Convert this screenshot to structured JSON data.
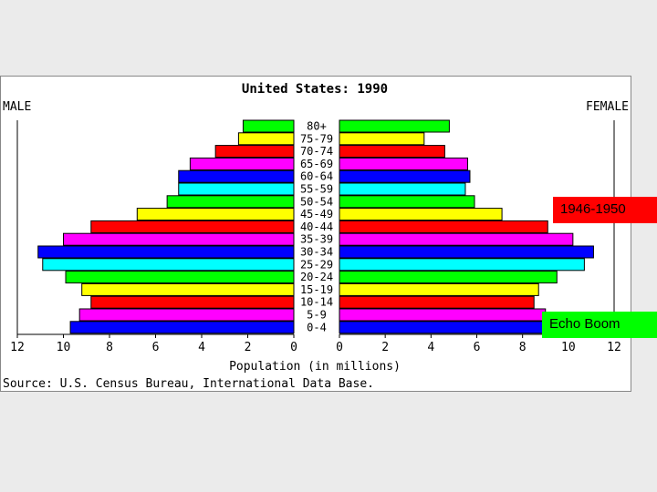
{
  "chart_data": {
    "type": "bar",
    "title": "United States: 1990",
    "left_label": "MALE",
    "right_label": "FEMALE",
    "xlabel": "Population (in millions)",
    "source": "Source: U.S. Census Bureau, International Data Base.",
    "xlim": [
      0,
      12
    ],
    "x_ticks": [
      "12",
      "10",
      "8",
      "6",
      "4",
      "2",
      "0",
      "0",
      "2",
      "4",
      "6",
      "8",
      "10",
      "12"
    ],
    "categories": [
      "80+",
      "75-79",
      "70-74",
      "65-69",
      "60-64",
      "55-59",
      "50-54",
      "45-49",
      "40-44",
      "35-39",
      "30-34",
      "25-29",
      "20-24",
      "15-19",
      "10-14",
      "5-9",
      "0-4"
    ],
    "series": [
      {
        "name": "MALE",
        "values": [
          2.2,
          2.4,
          3.4,
          4.5,
          5.0,
          5.0,
          5.5,
          6.8,
          8.8,
          10.0,
          11.1,
          10.9,
          9.9,
          9.2,
          8.8,
          9.3,
          9.7
        ]
      },
      {
        "name": "FEMALE",
        "values": [
          4.8,
          3.7,
          4.6,
          5.6,
          5.7,
          5.5,
          5.9,
          7.1,
          9.1,
          10.2,
          11.1,
          10.7,
          9.5,
          8.7,
          8.5,
          9.0,
          9.3
        ]
      }
    ],
    "bar_colors": [
      "#0000ff",
      "#ff00ff",
      "#ff0000",
      "#ffff00",
      "#00ff00",
      "#00ffff"
    ],
    "grid": false
  },
  "annotations": {
    "boom": {
      "text": "1946-1950",
      "color": "#ff0000"
    },
    "echo": {
      "text": "Echo Boom",
      "color": "#00ff00"
    }
  }
}
